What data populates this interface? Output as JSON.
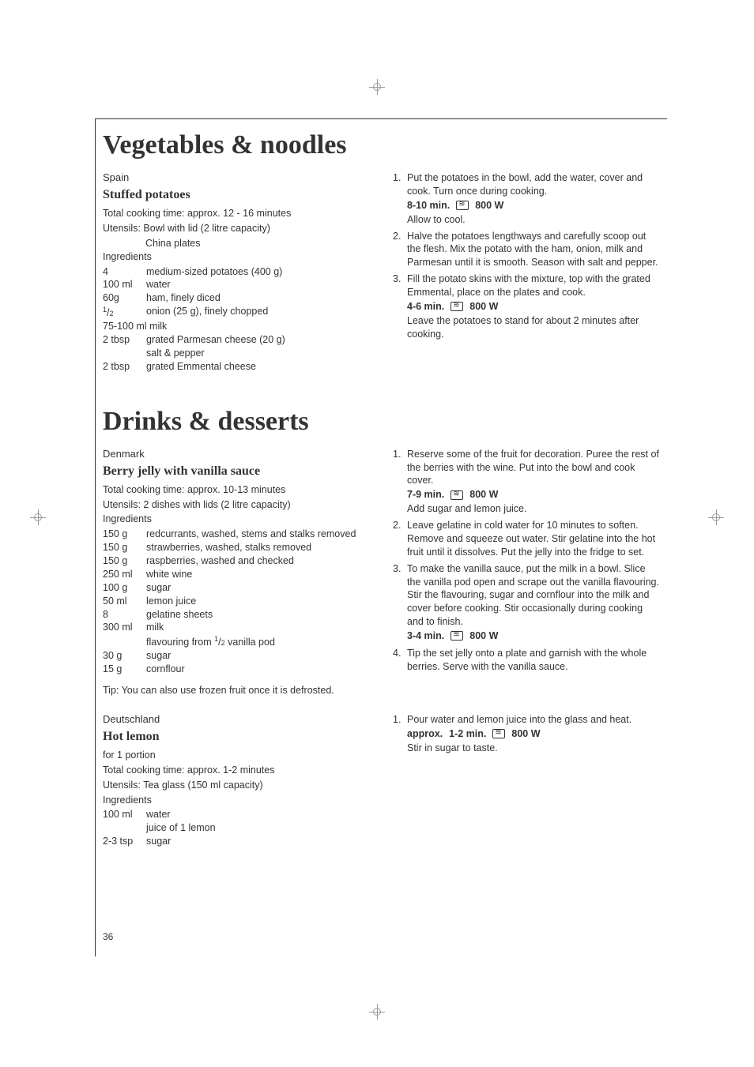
{
  "page_number": "36",
  "sections": [
    {
      "title": "Vegetables & noodles",
      "recipes": [
        {
          "country": "Spain",
          "name": "Stuffed potatoes",
          "cooking_time": "Total cooking time: approx. 12 - 16 minutes",
          "utensils_label": "Utensils:",
          "utensils1": "Bowl with lid (2 litre capacity)",
          "utensils2": "China plates",
          "ingredients_label": "Ingredients",
          "ingredients": [
            {
              "qty": "4",
              "item": "medium-sized potatoes (400 g)"
            },
            {
              "qty": "100 ml",
              "item": "water"
            },
            {
              "qty": "60g",
              "item": "ham, finely diced"
            },
            {
              "qty_html": "<span class='frac-sup'>1</span>/<span class='frac-sub'>2</span>",
              "item": "onion (25 g), finely chopped"
            },
            {
              "qty": "75-100 ml milk",
              "item": ""
            },
            {
              "qty": "2 tbsp",
              "item": "grated Parmesan cheese (20 g)"
            },
            {
              "qty": "",
              "item": "salt & pepper"
            },
            {
              "qty": "2 tbsp",
              "item": "grated Emmental cheese"
            }
          ],
          "steps": [
            {
              "num": "1.",
              "lines": [
                "Put the potatoes in the bowl, add the water, cover and cook. Turn once during cooking."
              ],
              "cook": {
                "time": "8-10 min.",
                "power": "800 W"
              },
              "after": "Allow to cool."
            },
            {
              "num": "2.",
              "lines": [
                "Halve the potatoes lengthways and carefully scoop out the flesh. Mix the potato with the ham, onion, milk and Parmesan until it is smooth. Season with salt and pepper."
              ]
            },
            {
              "num": "3.",
              "lines": [
                "Fill the potato skins with the mixture, top with the grated Emmental, place on the plates and cook."
              ],
              "cook": {
                "time": "4-6 min.",
                "power": "800 W"
              },
              "after": "Leave the potatoes to stand for about 2 minutes after cooking."
            }
          ]
        }
      ]
    },
    {
      "title": "Drinks & desserts",
      "recipes": [
        {
          "country": "Denmark",
          "name": "Berry jelly with vanilla sauce",
          "cooking_time": "Total cooking time: approx. 10-13 minutes",
          "utensils_label": "Utensils:",
          "utensils1": "2 dishes with lids (2 litre capacity)",
          "ingredients_label": "Ingredients",
          "ingredients": [
            {
              "qty": "150 g",
              "item": "redcurrants, washed, stems and stalks removed"
            },
            {
              "qty": "150 g",
              "item": "strawberries, washed, stalks removed"
            },
            {
              "qty": "150 g",
              "item": "raspberries, washed and checked"
            },
            {
              "qty": "250 ml",
              "item": "white wine"
            },
            {
              "qty": "100 g",
              "item": "sugar"
            },
            {
              "qty": "50 ml",
              "item": "lemon juice"
            },
            {
              "qty": "8",
              "item": "gelatine sheets"
            },
            {
              "qty": "300 ml",
              "item": "milk"
            },
            {
              "qty": "",
              "item_html": "flavouring from <span class='frac-sup'>1</span>/<span class='frac-sub'>2</span> vanilla pod"
            },
            {
              "qty": "30 g",
              "item": "sugar"
            },
            {
              "qty": "15 g",
              "item": "cornflour"
            }
          ],
          "tip": "Tip:  You can also use frozen fruit once it is defrosted.",
          "steps": [
            {
              "num": "1.",
              "lines": [
                "Reserve some of the fruit for decoration. Puree the rest of the berries with the wine. Put into the bowl and cook cover."
              ],
              "cook": {
                "time": "7-9 min.",
                "power": "800 W"
              },
              "after": "Add sugar and lemon juice."
            },
            {
              "num": "2.",
              "lines": [
                "Leave gelatine in cold water for 10 minutes to soften. Remove and squeeze out water. Stir gelatine into the hot fruit until it dissolves. Put the jelly into the fridge to set."
              ]
            },
            {
              "num": "3.",
              "lines": [
                "To make the vanilla sauce, put the milk in a bowl. Slice the vanilla pod open and scrape out the vanilla flavouring. Stir the flavouring, sugar and cornflour into the milk and cover before cooking. Stir occasionally during cooking and to finish."
              ],
              "cook": {
                "time": "3-4 min.",
                "power": "800 W"
              }
            },
            {
              "num": "4.",
              "lines": [
                "Tip the set jelly onto a plate and garnish with the whole berries. Serve with the vanilla sauce."
              ]
            }
          ]
        },
        {
          "country": "Deutschland",
          "name": "Hot lemon",
          "portion": "for 1 portion",
          "cooking_time": "Total cooking time: approx. 1-2 minutes",
          "utensils_label": "Utensils:",
          "utensils1": "Tea glass (150 ml capacity)",
          "ingredients_label": "Ingredients",
          "ingredients": [
            {
              "qty": "100 ml",
              "item": "water"
            },
            {
              "qty": "",
              "item": "juice of 1 lemon"
            },
            {
              "qty": "2-3 tsp",
              "item": "sugar"
            }
          ],
          "steps": [
            {
              "num": "1.",
              "lines": [
                "Pour water and lemon juice into the glass and heat."
              ],
              "cook": {
                "time_prefix": "approx.",
                "time": "1-2 min.",
                "power": "800 W"
              },
              "after": "Stir in sugar to taste."
            }
          ]
        }
      ]
    }
  ]
}
